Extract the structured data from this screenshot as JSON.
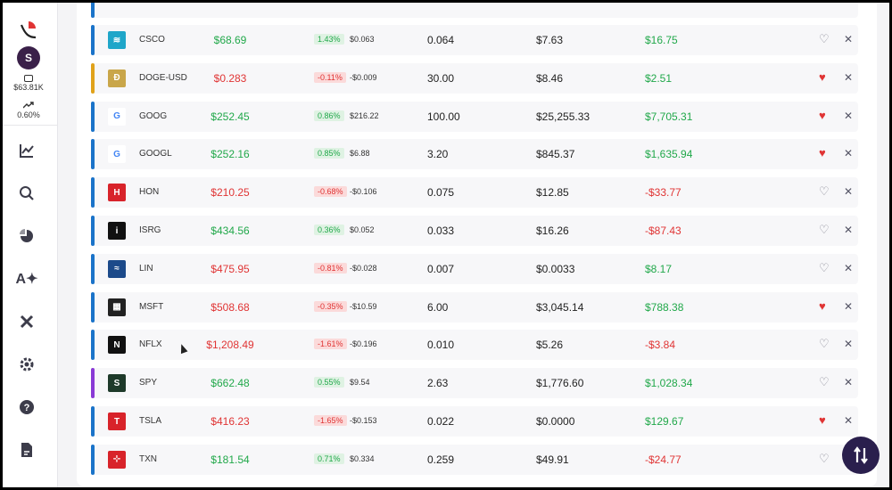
{
  "account": {
    "avatar": "S",
    "balance": "$63.81K",
    "change": "0.60%"
  },
  "rows": [
    {
      "symbol": "CSCO",
      "price": "$68.69",
      "price_dir": "green",
      "pct": "1.43%",
      "pct_dir": "green",
      "chg": "$0.063",
      "qty": "0.064",
      "value": "$7.63",
      "gain": "$16.75",
      "gain_dir": "green",
      "fav": false,
      "bar": "#1a73c9",
      "logo_bg": "#1fa6c9",
      "logo_txt": "≋"
    },
    {
      "symbol": "DOGE-USD",
      "price": "$0.283",
      "price_dir": "red",
      "pct": "-0.11%",
      "pct_dir": "red",
      "chg": "-$0.009",
      "qty": "30.00",
      "value": "$8.46",
      "gain": "$2.51",
      "gain_dir": "green",
      "fav": true,
      "bar": "#e0a21a",
      "logo_bg": "#c9a64a",
      "logo_txt": "Ð"
    },
    {
      "symbol": "GOOG",
      "price": "$252.45",
      "price_dir": "green",
      "pct": "0.86%",
      "pct_dir": "green",
      "chg": "$216.22",
      "qty": "100.00",
      "value": "$25,255.33",
      "gain": "$7,705.31",
      "gain_dir": "green",
      "fav": true,
      "bar": "#1a73c9",
      "logo_bg": "#ffffff",
      "logo_txt": "G"
    },
    {
      "symbol": "GOOGL",
      "price": "$252.16",
      "price_dir": "green",
      "pct": "0.85%",
      "pct_dir": "green",
      "chg": "$6.88",
      "qty": "3.20",
      "value": "$845.37",
      "gain": "$1,635.94",
      "gain_dir": "green",
      "fav": true,
      "bar": "#1a73c9",
      "logo_bg": "#ffffff",
      "logo_txt": "G"
    },
    {
      "symbol": "HON",
      "price": "$210.25",
      "price_dir": "red",
      "pct": "-0.68%",
      "pct_dir": "red",
      "chg": "-$0.106",
      "qty": "0.075",
      "value": "$12.85",
      "gain": "-$33.77",
      "gain_dir": "red",
      "fav": false,
      "bar": "#1a73c9",
      "logo_bg": "#d8232a",
      "logo_txt": "H"
    },
    {
      "symbol": "ISRG",
      "price": "$434.56",
      "price_dir": "green",
      "pct": "0.36%",
      "pct_dir": "green",
      "chg": "$0.052",
      "qty": "0.033",
      "value": "$16.26",
      "gain": "-$87.43",
      "gain_dir": "red",
      "fav": false,
      "bar": "#1a73c9",
      "logo_bg": "#111111",
      "logo_txt": "i"
    },
    {
      "symbol": "LIN",
      "price": "$475.95",
      "price_dir": "red",
      "pct": "-0.81%",
      "pct_dir": "red",
      "chg": "-$0.028",
      "qty": "0.007",
      "value": "$0.0033",
      "gain": "$8.17",
      "gain_dir": "green",
      "fav": false,
      "bar": "#1a73c9",
      "logo_bg": "#1c4a8a",
      "logo_txt": "≈"
    },
    {
      "symbol": "MSFT",
      "price": "$508.68",
      "price_dir": "red",
      "pct": "-0.35%",
      "pct_dir": "red",
      "chg": "-$10.59",
      "qty": "6.00",
      "value": "$3,045.14",
      "gain": "$788.38",
      "gain_dir": "green",
      "fav": true,
      "bar": "#1a73c9",
      "logo_bg": "#222222",
      "logo_txt": "▦"
    },
    {
      "symbol": "NFLX",
      "price": "$1,208.49",
      "price_dir": "red",
      "pct": "-1.61%",
      "pct_dir": "red",
      "chg": "-$0.196",
      "qty": "0.010",
      "value": "$5.26",
      "gain": "-$3.84",
      "gain_dir": "red",
      "fav": false,
      "bar": "#1a73c9",
      "logo_bg": "#111111",
      "logo_txt": "N"
    },
    {
      "symbol": "SPY",
      "price": "$662.48",
      "price_dir": "green",
      "pct": "0.55%",
      "pct_dir": "green",
      "chg": "$9.54",
      "qty": "2.63",
      "value": "$1,776.60",
      "gain": "$1,028.34",
      "gain_dir": "green",
      "fav": false,
      "bar": "#8a3ad6",
      "logo_bg": "#1e3a2a",
      "logo_txt": "S"
    },
    {
      "symbol": "TSLA",
      "price": "$416.23",
      "price_dir": "red",
      "pct": "-1.65%",
      "pct_dir": "red",
      "chg": "-$0.153",
      "qty": "0.022",
      "value": "$0.0000",
      "gain": "$129.67",
      "gain_dir": "green",
      "fav": true,
      "bar": "#1a73c9",
      "logo_bg": "#d8232a",
      "logo_txt": "T"
    },
    {
      "symbol": "TXN",
      "price": "$181.54",
      "price_dir": "green",
      "pct": "0.71%",
      "pct_dir": "green",
      "chg": "$0.334",
      "qty": "0.259",
      "value": "$49.91",
      "gain": "-$24.77",
      "gain_dir": "red",
      "fav": false,
      "bar": "#1a73c9",
      "logo_bg": "#d8232a",
      "logo_txt": "⊹"
    }
  ],
  "icons": {
    "heart_full": "♥",
    "heart_empty": "♡",
    "close": "✕"
  },
  "colors": {
    "green": "#21a84a",
    "red": "#e03434",
    "fab": "#2a1f4d"
  }
}
